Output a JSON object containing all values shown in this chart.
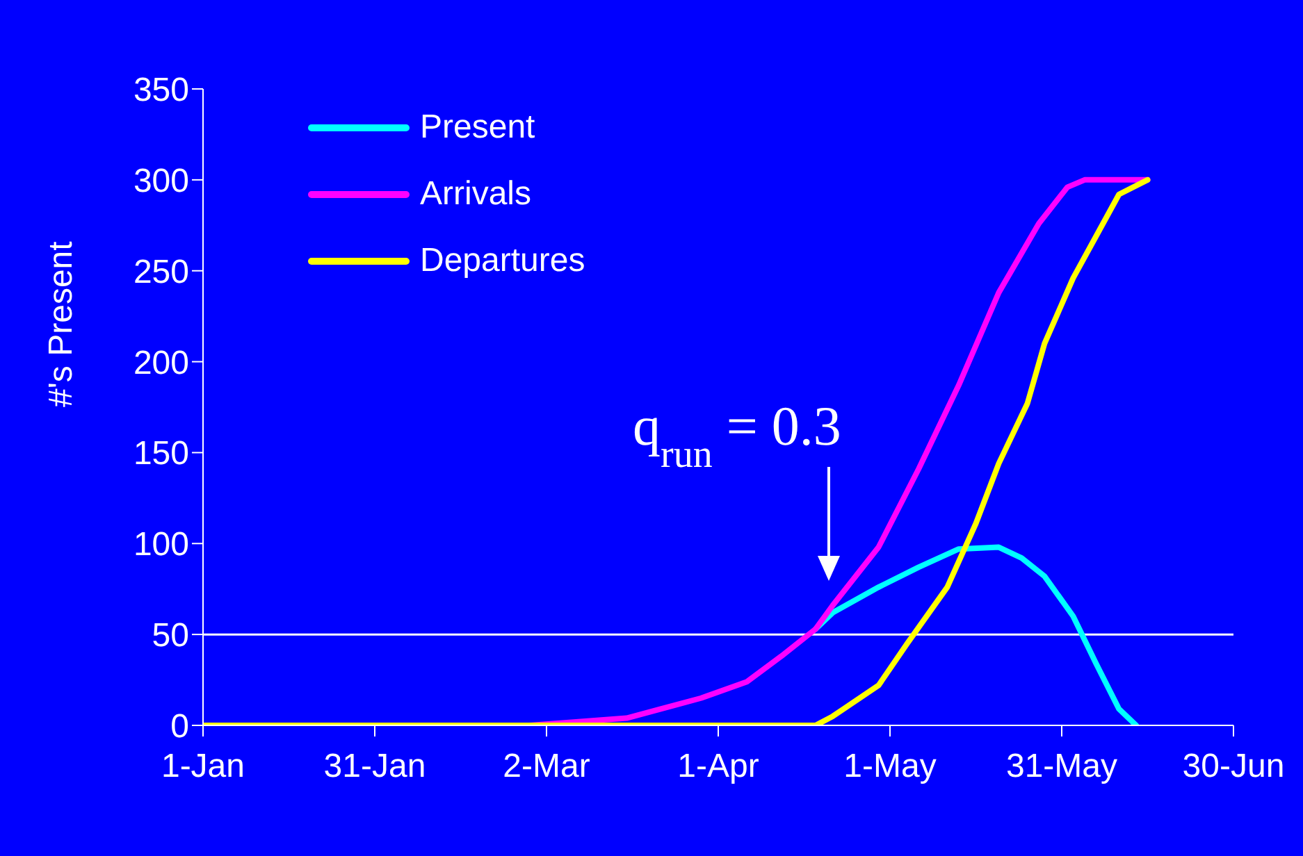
{
  "chart_data": {
    "type": "line",
    "ylabel": "#'s Present",
    "xlim": [
      "--01-01",
      "--06-30"
    ],
    "xticks": [
      {
        "value": "--01-01",
        "label": "1-Jan"
      },
      {
        "value": "--01-31",
        "label": "31-Jan"
      },
      {
        "value": "--03-02",
        "label": "2-Mar"
      },
      {
        "value": "--04-01",
        "label": "1-Apr"
      },
      {
        "value": "--05-01",
        "label": "1-May"
      },
      {
        "value": "--05-31",
        "label": "31-May"
      },
      {
        "value": "--06-30",
        "label": "30-Jun"
      }
    ],
    "ylim": [
      0,
      350
    ],
    "yticks": [
      0,
      50,
      100,
      150,
      200,
      250,
      300,
      350
    ],
    "legend": "top left",
    "series": [
      {
        "name": "Present",
        "color": "#00ffff",
        "x": [
          "--04-18",
          "--04-21",
          "--04-29",
          "--05-06",
          "--05-13",
          "--05-20",
          "--05-24",
          "--05-28",
          "--06-02",
          "--06-06",
          "--06-10",
          "--06-13"
        ],
        "values": [
          53,
          62,
          76,
          87,
          97,
          98,
          92,
          82,
          60,
          34,
          9,
          0
        ]
      },
      {
        "name": "Arrivals",
        "color": "#ff00ff",
        "x": [
          "--01-01",
          "--02-27",
          "--03-16",
          "--03-29",
          "--04-06",
          "--04-12",
          "--04-18",
          "--04-21",
          "--04-29",
          "--05-06",
          "--05-13",
          "--05-20",
          "--05-27",
          "--06-01",
          "--06-04",
          "--06-15"
        ],
        "values": [
          0,
          0,
          4,
          15,
          24,
          38,
          53,
          66,
          98,
          141,
          187,
          238,
          276,
          296,
          300,
          300
        ]
      },
      {
        "name": "Departures",
        "color": "#ffff00",
        "x": [
          "--01-01",
          "--04-18",
          "--04-21",
          "--04-29",
          "--05-04",
          "--05-11",
          "--05-16",
          "--05-20",
          "--05-25",
          "--05-28",
          "--06-02",
          "--06-06",
          "--06-10",
          "--06-15"
        ],
        "values": [
          0,
          0,
          5,
          22,
          45,
          76,
          111,
          144,
          177,
          210,
          246,
          269,
          292,
          300
        ]
      }
    ],
    "ref_lines": [
      {
        "axis": "y",
        "value": 50,
        "color": "#ffffff"
      }
    ],
    "annotations": [
      "q$_{run}$ = 0.3"
    ]
  }
}
